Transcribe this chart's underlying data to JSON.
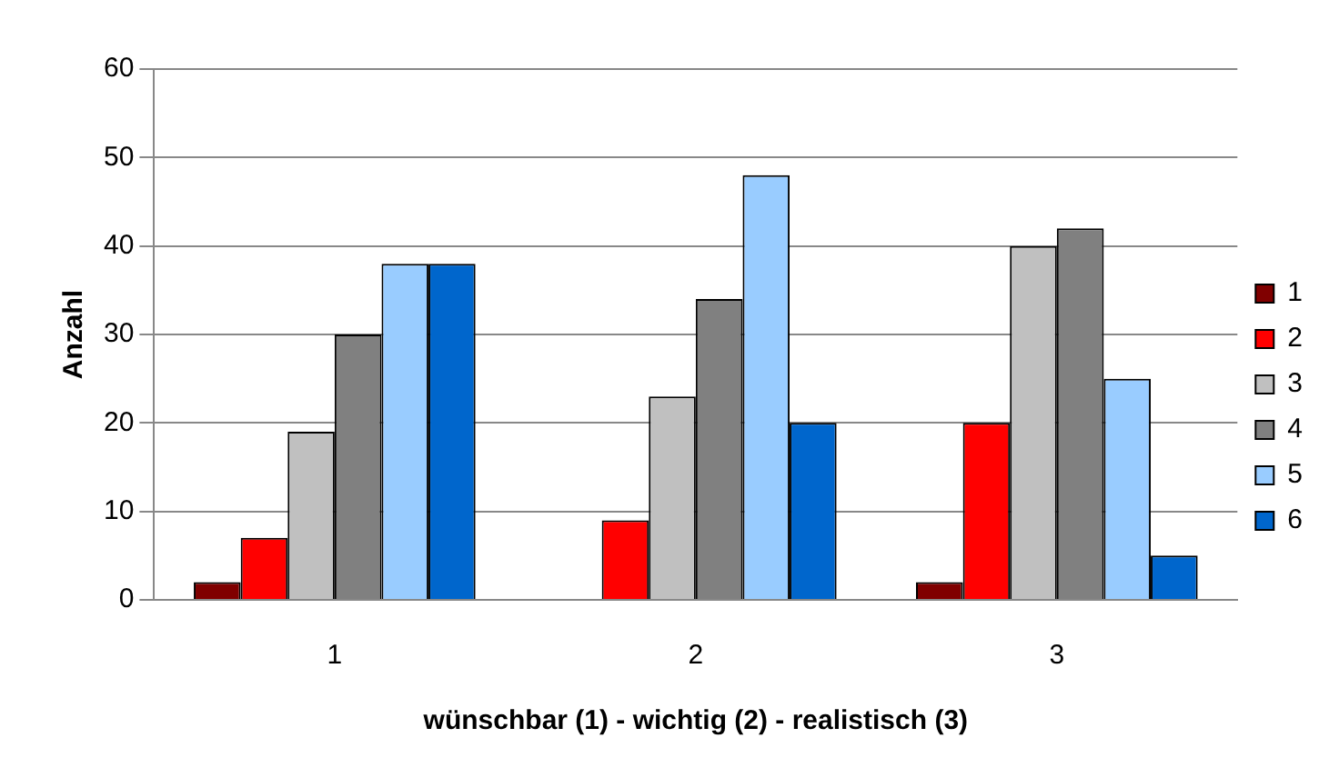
{
  "chart_data": {
    "type": "bar",
    "xlabel": "wünschbar (1) - wichtig (2) - realistisch (3)",
    "ylabel": "Anzahl",
    "categories": [
      "1",
      "2",
      "3"
    ],
    "series": [
      {
        "name": "1",
        "color": "#800000",
        "values": [
          2,
          0,
          2
        ]
      },
      {
        "name": "2",
        "color": "#ff0000",
        "values": [
          7,
          9,
          20
        ]
      },
      {
        "name": "3",
        "color": "#c0c0c0",
        "values": [
          19,
          23,
          40
        ]
      },
      {
        "name": "4",
        "color": "#808080",
        "values": [
          30,
          34,
          42
        ]
      },
      {
        "name": "5",
        "color": "#99ccff",
        "values": [
          38,
          48,
          25
        ]
      },
      {
        "name": "6",
        "color": "#0066cc",
        "values": [
          38,
          20,
          5
        ]
      }
    ],
    "ylim": [
      0,
      60
    ],
    "yticks": [
      0,
      10,
      20,
      30,
      40,
      50,
      60
    ],
    "grid": "y",
    "legend": "right"
  }
}
